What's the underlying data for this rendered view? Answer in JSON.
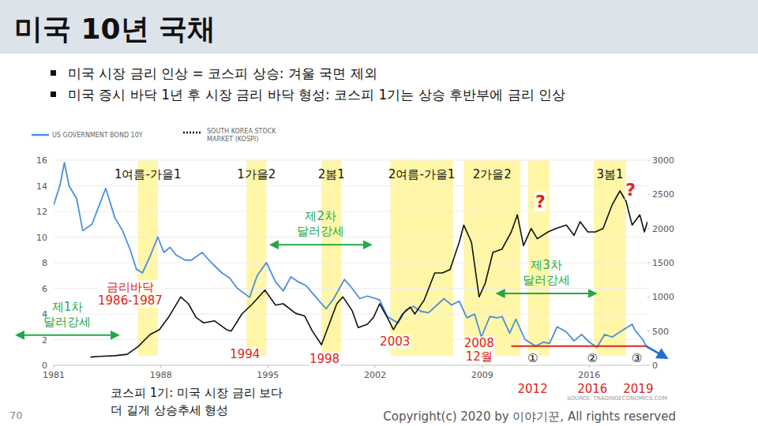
{
  "header": {
    "title": "미국 10년 국채",
    "bullets": [
      "미국 시장 금리 인상 = 코스피 상승: 겨울 국면 제외",
      "미국 증시 바닥 1년 후 시장 금리 바닥 형성: 코스피 1기는 상승 후반부에 금리 인상"
    ]
  },
  "chart_data": {
    "type": "line",
    "series": [
      {
        "name": "US GOVERNMENT BOND 10Y",
        "color": "#4a8fde",
        "axis": "y",
        "x": [
          1981,
          1981.4,
          1981.7,
          1982,
          1982.5,
          1982.9,
          1983.5,
          1984.4,
          1985,
          1985.5,
          1986,
          1986.4,
          1986.8,
          1987.3,
          1987.8,
          1988.2,
          1988.6,
          1989,
          1989.6,
          1990,
          1990.7,
          1991.3,
          1992,
          1992.5,
          1993,
          1993.8,
          1994.3,
          1994.9,
          1995.5,
          1996,
          1996.5,
          1997,
          1997.5,
          1998,
          1998.8,
          1999.3,
          2000,
          2000.5,
          2001,
          2001.5,
          2002.3,
          2002.8,
          2003.5,
          2004,
          2004.5,
          2005,
          2005.5,
          2006.5,
          2007,
          2007.5,
          2008,
          2008.5,
          2008.95,
          2009.5,
          2010,
          2010.3,
          2010.8,
          2011.2,
          2011.8,
          2012.5,
          2013,
          2013.4,
          2013.9,
          2014.5,
          2015,
          2015.5,
          2016,
          2016.5,
          2017,
          2017.5,
          2018,
          2018.8,
          2019,
          2019.5,
          2019.7
        ],
        "values": [
          12.5,
          14,
          15.8,
          14,
          13,
          10.5,
          11,
          13.8,
          11.5,
          10.5,
          9,
          7.5,
          7.2,
          8.5,
          10,
          8.8,
          9.2,
          8.6,
          8.2,
          8.2,
          8.8,
          8,
          7.2,
          6.8,
          6,
          5.3,
          7,
          8,
          6.5,
          5.8,
          6.9,
          6.5,
          6.2,
          5.5,
          4.4,
          5.2,
          6.7,
          6,
          5.2,
          5.4,
          5.1,
          3.8,
          3.3,
          4.3,
          4.6,
          4.2,
          4.1,
          5.2,
          4.7,
          5,
          3.7,
          4,
          2.2,
          3.8,
          3.7,
          3.8,
          2.5,
          3.6,
          2,
          1.5,
          1.8,
          1.7,
          3,
          2.6,
          1.9,
          2.4,
          1.8,
          1.4,
          2.4,
          2.2,
          2.6,
          3.2,
          2.7,
          2,
          1.5
        ]
      },
      {
        "name": "SOUTH KOREA STOCK MARKET (KOSPI)",
        "color": "#111111",
        "axis": "y2",
        "x": [
          1983.4,
          1984,
          1985,
          1985.8,
          1986.5,
          1987.3,
          1987.9,
          1988.5,
          1989.3,
          1989.8,
          1990.3,
          1990.8,
          1991.5,
          1992.3,
          1992.6,
          1993.3,
          1994,
          1994.8,
          1995.5,
          1996,
          1996.8,
          1997.4,
          1997.9,
          1998.5,
          1999,
          1999.5,
          1999.9,
          2000.5,
          2000.9,
          2001.5,
          2001.9,
          2002.3,
          2002.8,
          2003.2,
          2003.8,
          2004.3,
          2004.6,
          2005.2,
          2005.9,
          2006.4,
          2006.9,
          2007.5,
          2007.8,
          2008.3,
          2008.8,
          2009.2,
          2009.7,
          2010.3,
          2010.9,
          2011.3,
          2011.7,
          2012.2,
          2012.6,
          2013.3,
          2013.8,
          2014.5,
          2015,
          2015.4,
          2015.9,
          2016.4,
          2016.9,
          2017.5,
          2018,
          2018.4,
          2018.8,
          2019.3,
          2019.6,
          2019.8
        ],
        "values": [
          120,
          130,
          140,
          160,
          270,
          450,
          520,
          700,
          1000,
          900,
          700,
          620,
          650,
          520,
          500,
          750,
          900,
          1100,
          880,
          900,
          760,
          720,
          500,
          300,
          600,
          900,
          1000,
          800,
          550,
          600,
          700,
          900,
          700,
          520,
          750,
          850,
          750,
          950,
          1350,
          1350,
          1400,
          1800,
          2050,
          1800,
          1000,
          1200,
          1650,
          1700,
          1950,
          2200,
          1750,
          2000,
          1850,
          1950,
          2000,
          2050,
          1900,
          2100,
          1950,
          1950,
          2000,
          2350,
          2550,
          2400,
          2050,
          2200,
          1950,
          2100
        ]
      }
    ],
    "xlim": [
      1981,
      2019.8
    ],
    "xticks": [
      1981,
      1988,
      1995,
      2002,
      2009,
      2016
    ],
    "ylim": [
      0,
      16
    ],
    "yticks": [
      0,
      2,
      4,
      6,
      8,
      10,
      12,
      14,
      16
    ],
    "y2lim": [
      0,
      3000
    ],
    "y2ticks": [
      0,
      500,
      1000,
      1500,
      2000,
      2500,
      3000
    ],
    "grid": true,
    "legend": "top",
    "bands": [
      {
        "start": 1986.5,
        "end": 1987.8,
        "label": "1여름-가을1"
      },
      {
        "start": 1993.6,
        "end": 1994.9,
        "label": "1가을2"
      },
      {
        "start": 1998.5,
        "end": 1999.8,
        "label": "2봄1"
      },
      {
        "start": 2003.0,
        "end": 2007.1,
        "label": "2여름-가을1"
      },
      {
        "start": 2007.8,
        "end": 2011.5,
        "label": "2가을2"
      },
      {
        "start": 2012.0,
        "end": 2013.4
      },
      {
        "start": 2016.3,
        "end": 2018.4,
        "label": "3봄1"
      }
    ],
    "dollar_strength": [
      {
        "start": 1978.6,
        "end": 1985.2,
        "y": 2.35,
        "label": "제1차 달러강세"
      },
      {
        "start": 1995.2,
        "end": 2001.7,
        "y": 9.4,
        "label": "제2차 달러강세"
      },
      {
        "start": 2010.0,
        "end": 2016.4,
        "y": 5.6,
        "label": "제3차 달러강세"
      }
    ],
    "support_line": {
      "start": 2010.9,
      "end": 2019.8,
      "y": 1.5,
      "color": "#e0241b"
    },
    "annotations": [
      {
        "text": "금리바닥 1986-1987",
        "x": 1986.0,
        "y": 5.6,
        "color": "#e0241b"
      },
      {
        "text": "1994",
        "x": 1993.5,
        "y": 0.9,
        "color": "#e0241b"
      },
      {
        "text": "1998",
        "x": 1998.7,
        "y": 0.5,
        "color": "#e0241b"
      },
      {
        "text": "2003",
        "x": 2003.3,
        "y": 1.85,
        "color": "#e0241b"
      },
      {
        "text": "2008 12월",
        "x": 2008.8,
        "y": 1.2,
        "color": "#e0241b"
      },
      {
        "text": "2012",
        "x": 2012.3,
        "y": -1.85,
        "color": "#e0241b"
      },
      {
        "text": "2016",
        "x": 2016.2,
        "y": -1.85,
        "color": "#e0241b"
      },
      {
        "text": "2019",
        "x": 2019.2,
        "y": -1.85,
        "color": "#e0241b"
      },
      {
        "text": "①",
        "x": 2012.3,
        "y": 0.6,
        "color": "#111111"
      },
      {
        "text": "②",
        "x": 2016.2,
        "y": 0.6,
        "color": "#111111"
      },
      {
        "text": "③",
        "x": 2019.1,
        "y": 0.6,
        "color": "#111111"
      },
      {
        "text": "?",
        "x": 2012.8,
        "y": 12.8,
        "color": "#e0241b"
      },
      {
        "text": "?",
        "x": 2018.7,
        "y": 13.7,
        "color": "#e0241b"
      }
    ],
    "source": "SOURCE: TRADINGECONOMICS.COM",
    "note": "코스피 1기: 미국 시장 금리 보다 더 길게 상승추세 형성"
  },
  "footer": {
    "page": "70",
    "copyright": "Copyright(c) 2020 by 이야기꾼, All rights reserved"
  }
}
